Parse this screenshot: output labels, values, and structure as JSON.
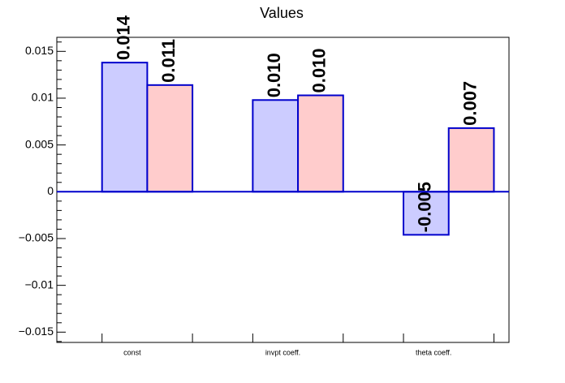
{
  "chart_data": {
    "type": "bar",
    "title": "Values",
    "categories": [
      "const",
      "invpt coeff.",
      "theta coeff."
    ],
    "series": [
      {
        "color": "#ccccff",
        "edgecolor": "#0000cc",
        "values": [
          0.0138,
          0.0098,
          -0.0046
        ],
        "value_labels": [
          "0.014",
          "0.010",
          "-0.005"
        ]
      },
      {
        "color": "#ffcccc",
        "edgecolor": "#0000cc",
        "values": [
          0.0114,
          0.0103,
          0.0068
        ],
        "value_labels": [
          "0.011",
          "0.010",
          "0.007"
        ]
      }
    ],
    "ylim": [
      -0.0161,
      0.0165
    ],
    "yticks": [
      {
        "value": -0.015,
        "label": "−0.015"
      },
      {
        "value": -0.01,
        "label": "−0.01"
      },
      {
        "value": -0.005,
        "label": "−0.005"
      },
      0,
      0.005,
      0.01,
      0.015
    ],
    "grid": false
  }
}
